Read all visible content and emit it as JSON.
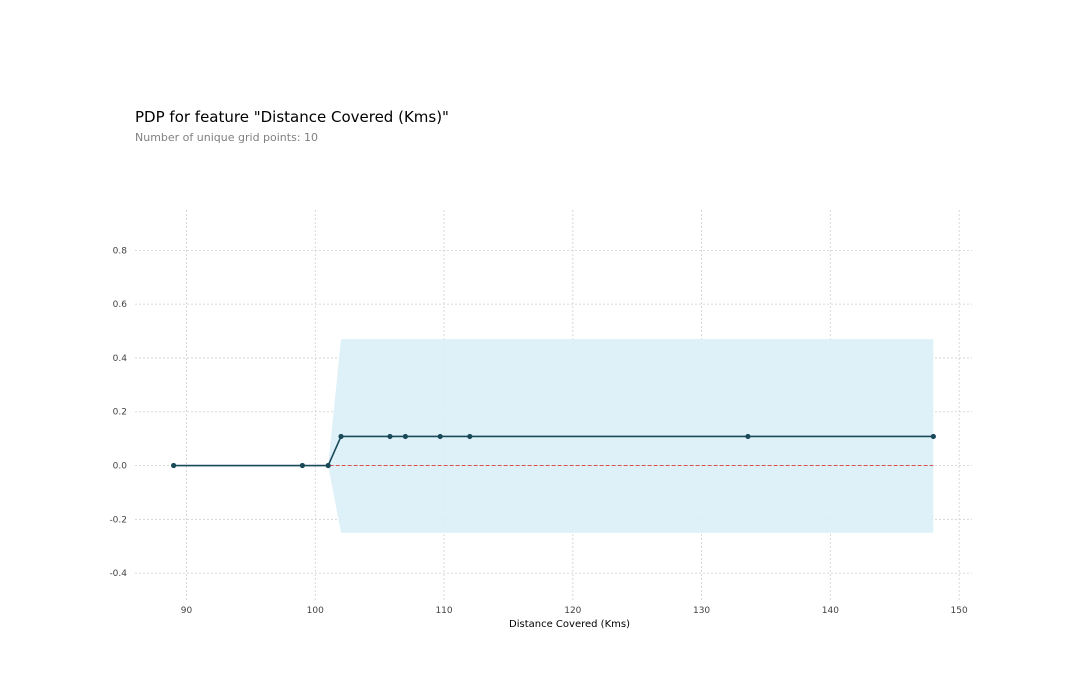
{
  "header": {
    "title": "PDP for feature \"Distance Covered (Kms)\"",
    "subtitle": "Number of unique grid points: 10"
  },
  "chart_data": {
    "type": "line",
    "title": "PDP for feature \"Distance Covered (Kms)\"",
    "subtitle": "Number of unique grid points: 10",
    "xlabel": "Distance Covered (Kms)",
    "ylabel": "",
    "xlim": [
      86,
      151
    ],
    "ylim": [
      -0.5,
      0.95
    ],
    "xticks": [
      90,
      100,
      110,
      120,
      130,
      140,
      150
    ],
    "yticks": [
      -0.4,
      -0.2,
      0.0,
      0.2,
      0.4,
      0.6,
      0.8
    ],
    "grid": true,
    "series": [
      {
        "name": "",
        "x": [
          89,
          99,
          101,
          102,
          105.8,
          107,
          109.7,
          112,
          133.6,
          148
        ],
        "values": [
          0.0,
          0.0,
          0.0,
          0.108,
          0.108,
          0.108,
          0.108,
          0.108,
          0.108,
          0.108
        ],
        "lower": [
          0.0,
          0.0,
          0.0,
          -0.25,
          -0.25,
          -0.25,
          -0.25,
          -0.25,
          -0.25,
          -0.25
        ],
        "upper": [
          0.0,
          0.0,
          0.0,
          0.47,
          0.47,
          0.47,
          0.47,
          0.47,
          0.47,
          0.47
        ]
      }
    ],
    "baseline": 0.0,
    "colors": {
      "line": "#1a4a5a",
      "marker": "#1a4a5a",
      "band": "#dbeff7",
      "baseline": "#d9534f",
      "grid": "#cfcfcf"
    }
  }
}
